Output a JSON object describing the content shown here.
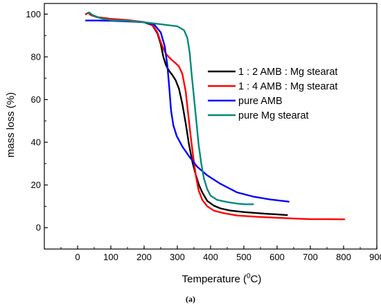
{
  "caption": "(a)",
  "chart_data": {
    "type": "line",
    "xlabel": "Temperature (",
    "xlabel_sup": "0",
    "xlabel_end": "C)",
    "ylabel": "mass loss (%)",
    "xlim": [
      -100,
      900
    ],
    "ylim": [
      -10,
      105
    ],
    "xticks": [
      0,
      100,
      200,
      300,
      400,
      500,
      600,
      700,
      800,
      900
    ],
    "yticks": [
      0,
      20,
      40,
      60,
      80,
      100
    ],
    "grid": false,
    "legend_position": "right",
    "series": [
      {
        "name": "1 : 2 AMB : Mg stearat",
        "color": "#000000",
        "points": [
          [
            25,
            100
          ],
          [
            32,
            100.6
          ],
          [
            40,
            99.6
          ],
          [
            60,
            98.5
          ],
          [
            100,
            97.6
          ],
          [
            150,
            97
          ],
          [
            200,
            96.2
          ],
          [
            225,
            94.8
          ],
          [
            240,
            91
          ],
          [
            250,
            86
          ],
          [
            258,
            80
          ],
          [
            266,
            76
          ],
          [
            275,
            73.5
          ],
          [
            285,
            71.5
          ],
          [
            295,
            69
          ],
          [
            305,
            65
          ],
          [
            315,
            58
          ],
          [
            325,
            49
          ],
          [
            335,
            39
          ],
          [
            345,
            31
          ],
          [
            355,
            25
          ],
          [
            365,
            20
          ],
          [
            375,
            16.5
          ],
          [
            390,
            12.5
          ],
          [
            410,
            10.3
          ],
          [
            430,
            9
          ],
          [
            460,
            8
          ],
          [
            500,
            7.3
          ],
          [
            550,
            6.7
          ],
          [
            600,
            6.2
          ],
          [
            630,
            5.9
          ]
        ]
      },
      {
        "name": "1 : 4 AMB : Mg stearat",
        "color": "#ff0000",
        "points": [
          [
            25,
            100
          ],
          [
            32,
            100.6
          ],
          [
            40,
            99.5
          ],
          [
            60,
            98.6
          ],
          [
            100,
            97.8
          ],
          [
            150,
            97.2
          ],
          [
            200,
            96.3
          ],
          [
            225,
            95
          ],
          [
            240,
            91.5
          ],
          [
            252,
            86
          ],
          [
            265,
            81.5
          ],
          [
            280,
            79
          ],
          [
            295,
            77
          ],
          [
            305,
            75.5
          ],
          [
            315,
            72
          ],
          [
            325,
            64
          ],
          [
            332,
            54
          ],
          [
            340,
            43
          ],
          [
            348,
            33
          ],
          [
            356,
            24
          ],
          [
            364,
            17.5
          ],
          [
            375,
            13
          ],
          [
            390,
            10
          ],
          [
            410,
            8
          ],
          [
            440,
            6.8
          ],
          [
            480,
            5.7
          ],
          [
            550,
            5
          ],
          [
            650,
            4.3
          ],
          [
            700,
            4
          ],
          [
            750,
            4
          ],
          [
            802,
            3.9
          ]
        ]
      },
      {
        "name": "pure AMB",
        "color": "#0000ff",
        "points": [
          [
            25,
            97
          ],
          [
            60,
            97
          ],
          [
            100,
            96.9
          ],
          [
            150,
            96.6
          ],
          [
            200,
            96.2
          ],
          [
            230,
            95.2
          ],
          [
            250,
            91.5
          ],
          [
            262,
            85
          ],
          [
            270,
            76
          ],
          [
            276,
            65
          ],
          [
            281,
            55
          ],
          [
            288,
            48
          ],
          [
            298,
            43
          ],
          [
            315,
            38
          ],
          [
            335,
            33.5
          ],
          [
            360,
            28.5
          ],
          [
            390,
            24.5
          ],
          [
            430,
            20.5
          ],
          [
            480,
            16.5
          ],
          [
            530,
            14.5
          ],
          [
            580,
            13.2
          ],
          [
            635,
            12.2
          ]
        ]
      },
      {
        "name": "pure Mg stearat",
        "color": "#00897b",
        "points": [
          [
            30,
            100.5
          ],
          [
            35,
            100.8
          ],
          [
            45,
            99.6
          ],
          [
            70,
            98
          ],
          [
            100,
            97.2
          ],
          [
            150,
            96.8
          ],
          [
            200,
            96.2
          ],
          [
            250,
            95.3
          ],
          [
            300,
            94.3
          ],
          [
            320,
            92.5
          ],
          [
            330,
            89
          ],
          [
            337,
            82
          ],
          [
            343,
            72
          ],
          [
            350,
            61
          ],
          [
            357,
            50
          ],
          [
            364,
            39
          ],
          [
            372,
            30
          ],
          [
            380,
            23
          ],
          [
            390,
            18
          ],
          [
            400,
            15
          ],
          [
            420,
            13
          ],
          [
            450,
            12
          ],
          [
            480,
            11.3
          ],
          [
            500,
            11
          ],
          [
            528,
            11
          ]
        ]
      }
    ]
  }
}
